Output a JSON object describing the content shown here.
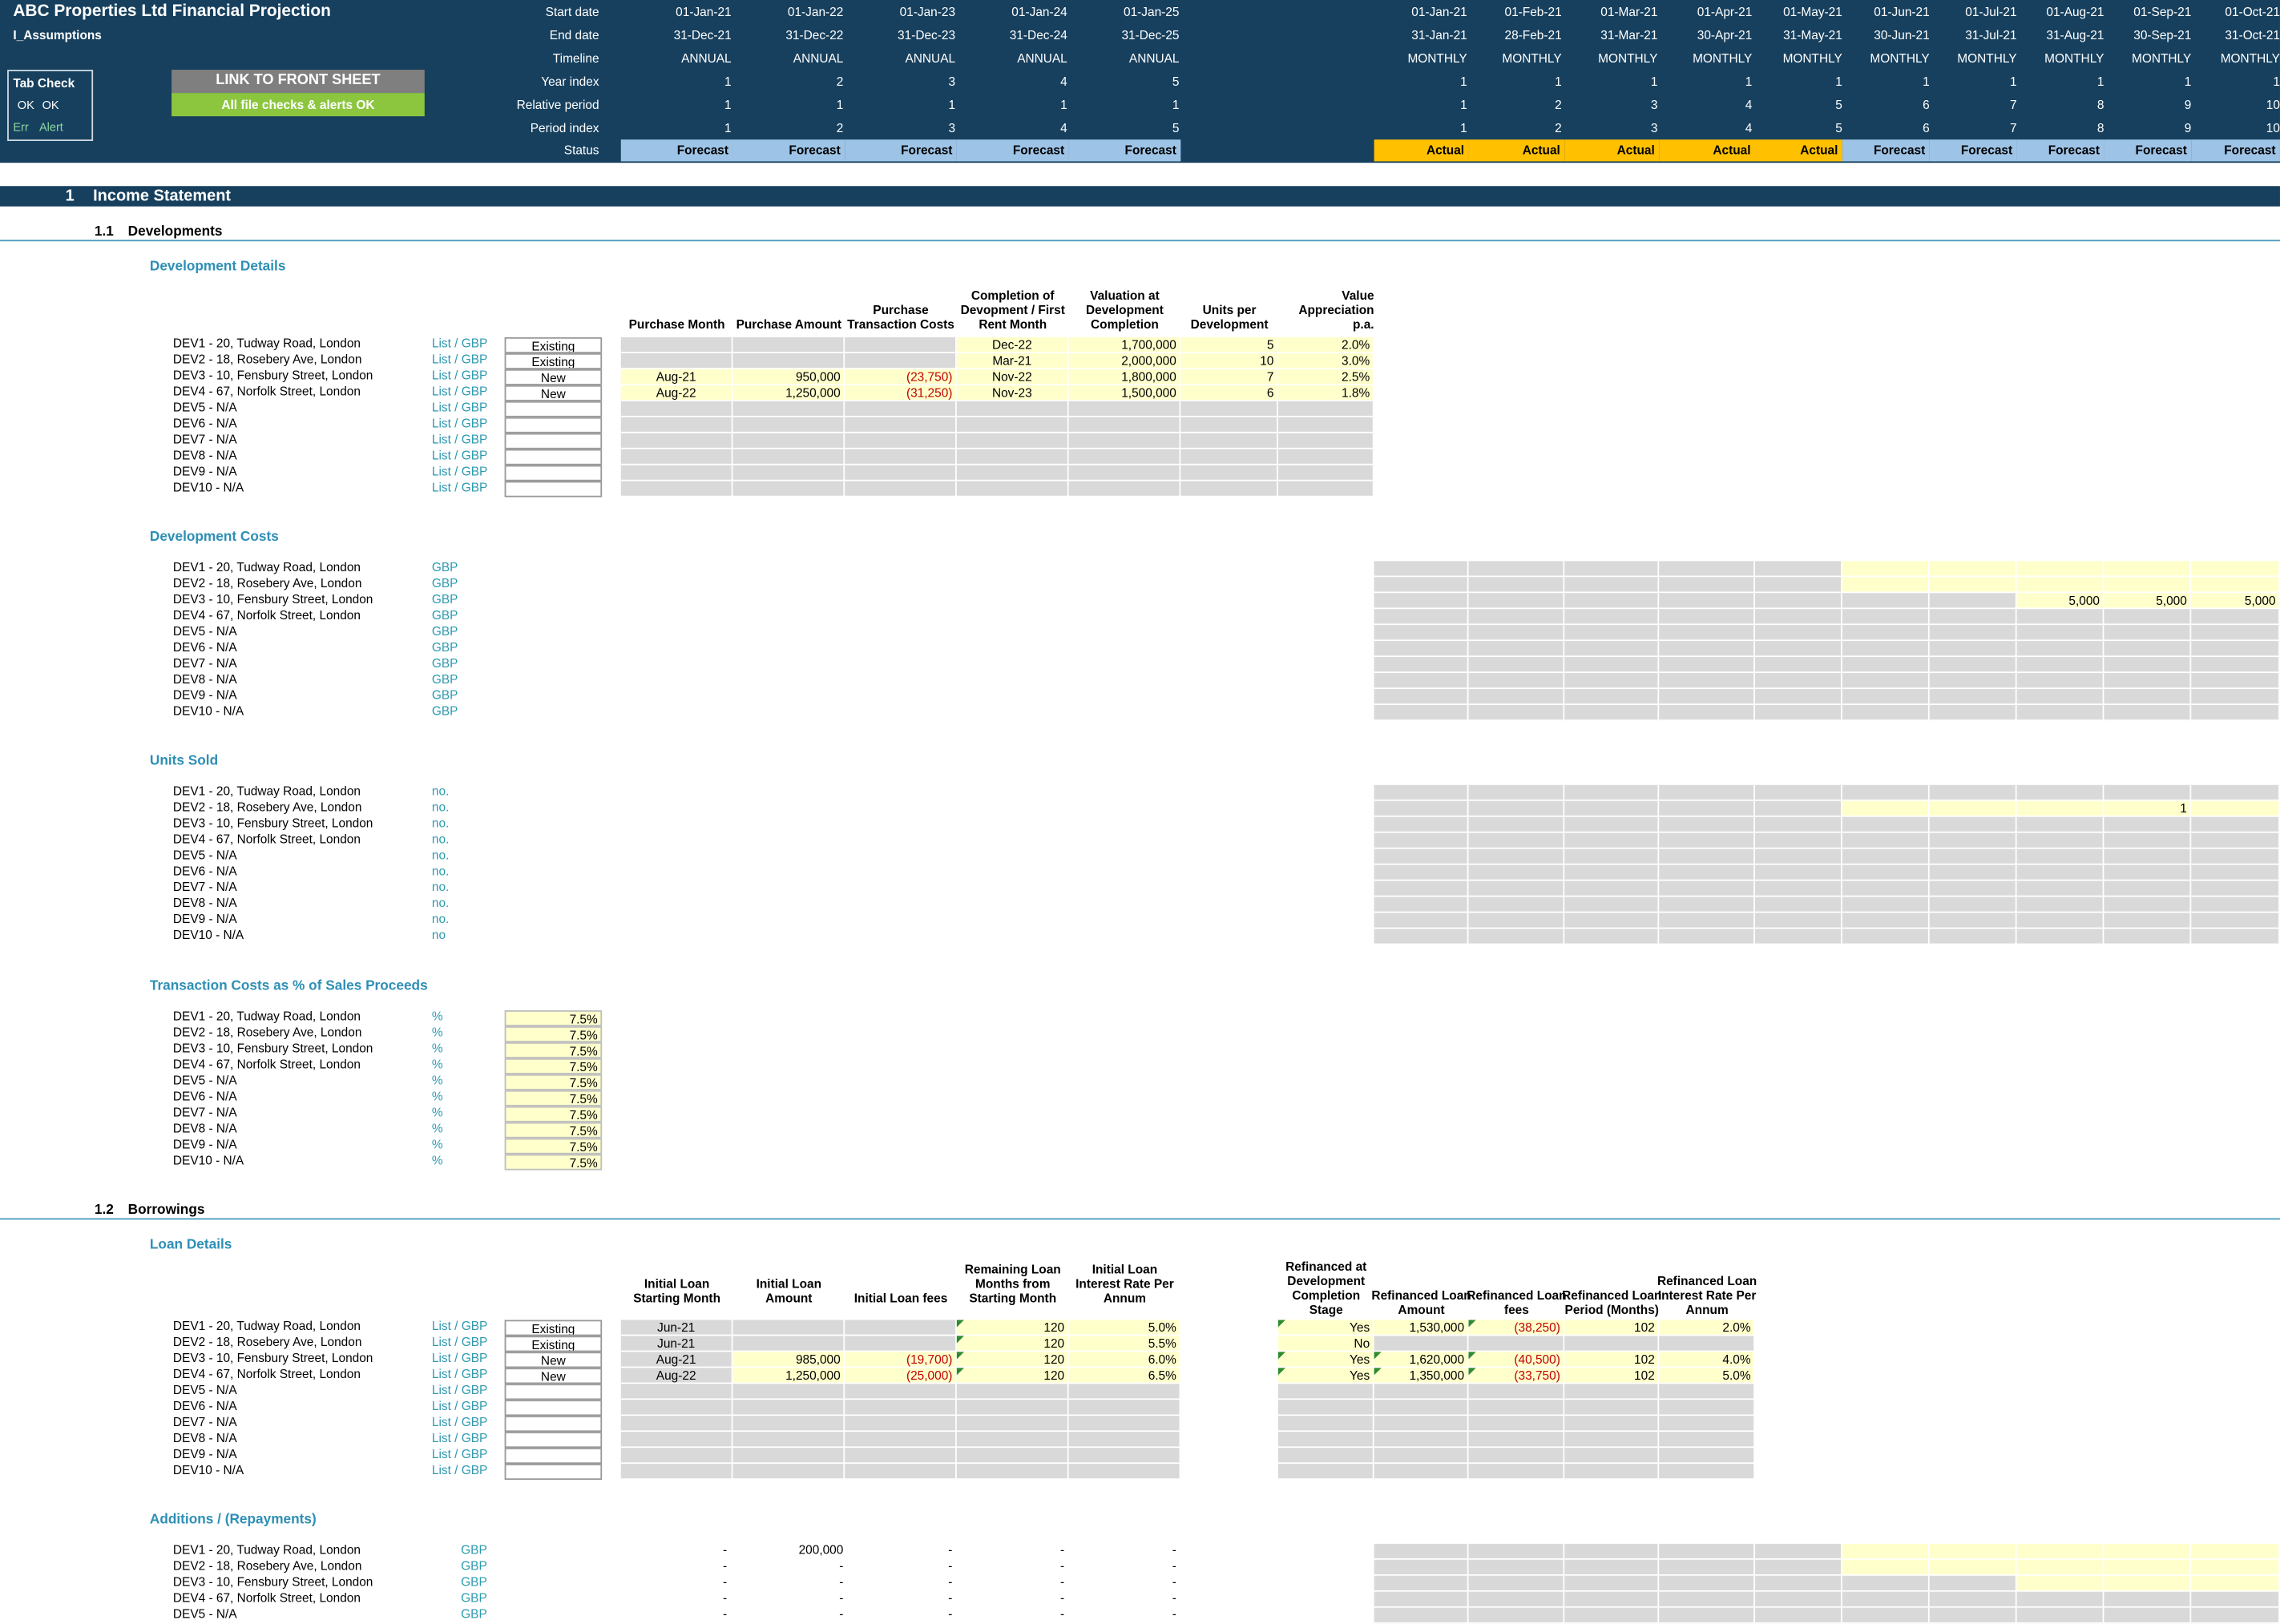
{
  "header": {
    "title": "ABC Properties Ltd Financial Projection",
    "sheet": "I_Assumptions",
    "tab_check": {
      "title": "Tab Check",
      "ok1": "OK",
      "ok2": "OK",
      "err": "Err",
      "alert": "Alert"
    },
    "link_button": "LINK TO FRONT SHEET",
    "checks_ok": "All file checks & alerts OK",
    "row_labels": [
      "Start date",
      "End date",
      "Timeline",
      "Year index",
      "Relative period",
      "Period index",
      "Status"
    ],
    "annual": {
      "start": [
        "01-Jan-21",
        "01-Jan-22",
        "01-Jan-23",
        "01-Jan-24",
        "01-Jan-25"
      ],
      "end": [
        "31-Dec-21",
        "31-Dec-22",
        "31-Dec-23",
        "31-Dec-24",
        "31-Dec-25"
      ],
      "timeline": [
        "ANNUAL",
        "ANNUAL",
        "ANNUAL",
        "ANNUAL",
        "ANNUAL"
      ],
      "year_index": [
        "1",
        "2",
        "3",
        "4",
        "5"
      ],
      "relative": [
        "1",
        "1",
        "1",
        "1",
        "1"
      ],
      "period_index": [
        "1",
        "2",
        "3",
        "4",
        "5"
      ],
      "status": [
        "Forecast",
        "Forecast",
        "Forecast",
        "Forecast",
        "Forecast"
      ]
    },
    "monthly": {
      "start": [
        "01-Jan-21",
        "01-Feb-21",
        "01-Mar-21",
        "01-Apr-21",
        "01-May-21",
        "01-Jun-21",
        "01-Jul-21",
        "01-Aug-21",
        "01-Sep-21",
        "01-Oct-21"
      ],
      "end": [
        "31-Jan-21",
        "28-Feb-21",
        "31-Mar-21",
        "30-Apr-21",
        "31-May-21",
        "30-Jun-21",
        "31-Jul-21",
        "31-Aug-21",
        "30-Sep-21",
        "31-Oct-21"
      ],
      "timeline": [
        "MONTHLY",
        "MONTHLY",
        "MONTHLY",
        "MONTHLY",
        "MONTHLY",
        "MONTHLY",
        "MONTHLY",
        "MONTHLY",
        "MONTHLY",
        "MONTHLY"
      ],
      "year_index": [
        "1",
        "1",
        "1",
        "1",
        "1",
        "1",
        "1",
        "1",
        "1",
        "1"
      ],
      "relative": [
        "1",
        "2",
        "3",
        "4",
        "5",
        "6",
        "7",
        "8",
        "9",
        "10"
      ],
      "period_index": [
        "1",
        "2",
        "3",
        "4",
        "5",
        "6",
        "7",
        "8",
        "9",
        "10"
      ],
      "status": [
        "Actual",
        "Actual",
        "Actual",
        "Actual",
        "Actual",
        "Forecast",
        "Forecast",
        "Forecast",
        "Forecast",
        "Forecast"
      ]
    },
    "colors": {
      "navy": "#17405e",
      "actual": "#ffc000",
      "forecast": "#9dc3e6",
      "link_btn": "#7f7f7f",
      "ok_btn": "#8cc63f"
    }
  },
  "dev_names": [
    "DEV1 - 20, Tudway Road, London",
    "DEV2 - 18, Rosebery Ave, London",
    "DEV3 - 10, Fensbury Street, London",
    "DEV4 - 67, Norfolk Street, London",
    "DEV5 - N/A",
    "DEV6 - N/A",
    "DEV7 - N/A",
    "DEV8 - N/A",
    "DEV9 - N/A",
    "DEV10 - N/A"
  ],
  "income_statement": {
    "num": "1",
    "title": "Income Statement",
    "developments": {
      "num": "1.1",
      "title": "Developments",
      "details": {
        "title": "Development Details",
        "unit": "List / GBP",
        "status": [
          "Existing",
          "Existing",
          "New",
          "New",
          "",
          "",
          "",
          "",
          "",
          ""
        ],
        "headers": [
          "Purchase Month",
          "Purchase Amount",
          "Purchase Transaction Costs",
          "Completion of Devopment / First Rent Month",
          "Valuation at Development Completion",
          "Units per Development",
          "Value Appreciation p.a."
        ],
        "rows": [
          [
            "",
            "",
            "",
            "Dec-22",
            "1,700,000",
            "5",
            "2.0%"
          ],
          [
            "",
            "",
            "",
            "Mar-21",
            "2,000,000",
            "10",
            "3.0%"
          ],
          [
            "Aug-21",
            "950,000",
            "(23,750)",
            "Nov-22",
            "1,800,000",
            "7",
            "2.5%"
          ],
          [
            "Aug-22",
            "1,250,000",
            "(31,250)",
            "Nov-23",
            "1,500,000",
            "6",
            "1.8%"
          ]
        ]
      },
      "costs": {
        "title": "Development Costs",
        "unit": "GBP",
        "dev3_values": [
          "5,000",
          "5,000",
          "5,000"
        ]
      },
      "units_sold": {
        "title": "Units Sold",
        "unit": "no.",
        "unit_last": "no",
        "dev2_value": "1"
      },
      "transaction_costs": {
        "title": "Transaction Costs as % of Sales Proceeds",
        "unit": "%",
        "values": [
          "7.5%",
          "7.5%",
          "7.5%",
          "7.5%",
          "7.5%",
          "7.5%",
          "7.5%",
          "7.5%",
          "7.5%",
          "7.5%"
        ]
      }
    },
    "borrowings": {
      "num": "1.2",
      "title": "Borrowings",
      "loan_details": {
        "title": "Loan Details",
        "headers": [
          "Initial Loan Starting Month",
          "Initial Loan Amount",
          "Initial Loan fees",
          "Remaining Loan Months from Starting Month",
          "Initial Loan Interest Rate Per Annum"
        ],
        "ref_headers": [
          "Refinanced at Development Completion Stage",
          "Refinanced Loan Amount",
          "Refinanced Loan fees",
          "Refinanced Loan Period (Months)",
          "Refinanced Loan Interest Rate Per Annum"
        ],
        "rows": [
          [
            "Jun-21",
            "",
            "",
            "120",
            "5.0%"
          ],
          [
            "Jun-21",
            "",
            "",
            "120",
            "5.5%"
          ],
          [
            "Aug-21",
            "985,000",
            "(19,700)",
            "120",
            "6.0%"
          ],
          [
            "Aug-22",
            "1,250,000",
            "(25,000)",
            "120",
            "6.5%"
          ]
        ],
        "ref_rows": [
          [
            "Yes",
            "1,530,000",
            "(38,250)",
            "102",
            "2.0%"
          ],
          [
            "No",
            "",
            "",
            "",
            ""
          ],
          [
            "Yes",
            "1,620,000",
            "(40,500)",
            "102",
            "4.0%"
          ],
          [
            "Yes",
            "1,350,000",
            "(33,750)",
            "102",
            "5.0%"
          ]
        ]
      },
      "additions": {
        "title": "Additions / (Repayments)",
        "unit": "GBP",
        "rows": [
          [
            "-",
            "200,000",
            "-",
            "-",
            "-"
          ],
          [
            "-",
            "-",
            "-",
            "-",
            "-"
          ],
          [
            "-",
            "-",
            "-",
            "-",
            "-"
          ],
          [
            "-",
            "-",
            "-",
            "-",
            "-"
          ],
          [
            "-",
            "-",
            "-",
            "-",
            "-"
          ]
        ]
      }
    }
  }
}
